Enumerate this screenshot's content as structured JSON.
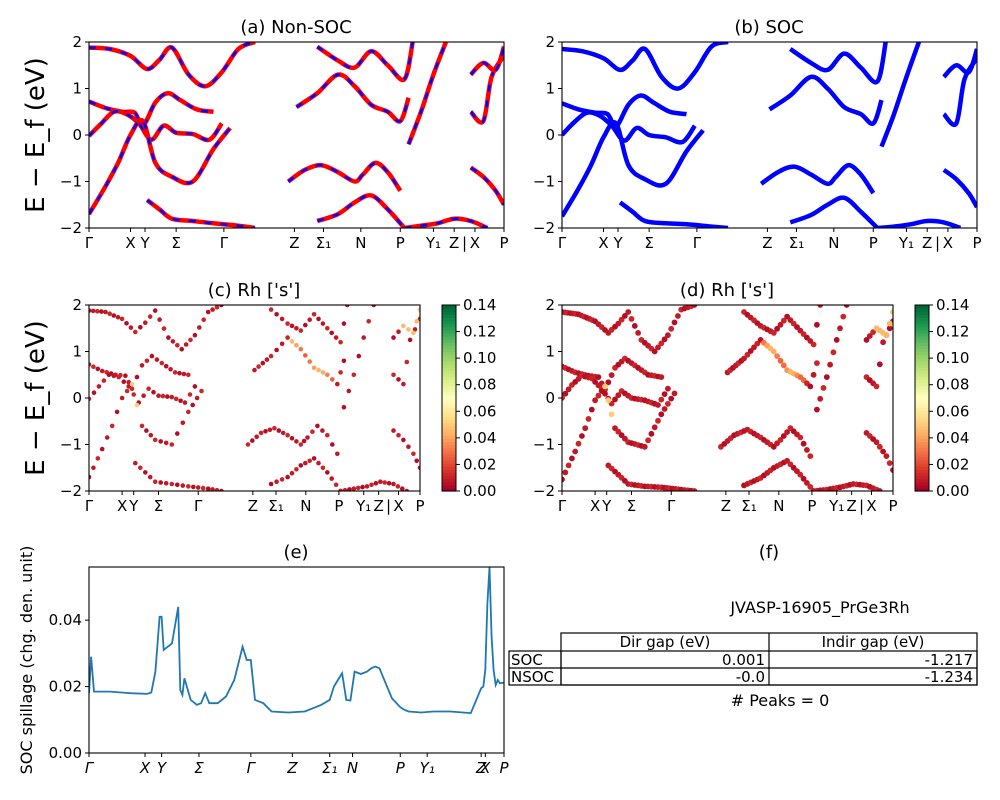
{
  "chart_data": [
    {
      "id": "a",
      "type": "line",
      "title": "(a) Non-SOC",
      "ylabel": "E − E_f (eV)",
      "ylim": [
        -2,
        2
      ],
      "yticks": [
        "−2",
        "−1",
        "0",
        "1",
        "2"
      ],
      "xticks": [
        "Γ",
        "X",
        "Y",
        "Σ",
        "Γ",
        "Z",
        "Σ₁",
        "N",
        "P",
        "Y₁",
        "Z",
        "|",
        "X",
        "P"
      ],
      "series_colors": [
        "#ff0000",
        "#0000ff"
      ],
      "bands": [
        [
          [
            0,
            1.88
          ],
          [
            0.05,
            1.85
          ],
          [
            0.1,
            1.7
          ],
          [
            0.14,
            1.42
          ],
          [
            0.17,
            1.62
          ],
          [
            0.2,
            1.88
          ],
          [
            0.24,
            1.3
          ],
          [
            0.28,
            1.05
          ],
          [
            0.32,
            1.35
          ],
          [
            0.36,
            1.85
          ],
          [
            0.4,
            2.0
          ]
        ],
        [
          [
            0,
            0.72
          ],
          [
            0.04,
            0.58
          ],
          [
            0.08,
            0.5
          ],
          [
            0.11,
            0.48
          ],
          [
            0.13,
            0.2
          ],
          [
            0.16,
            0.7
          ],
          [
            0.19,
            0.9
          ],
          [
            0.22,
            0.75
          ],
          [
            0.26,
            0.55
          ],
          [
            0.3,
            0.5
          ]
        ],
        [
          [
            0,
            -0.02
          ],
          [
            0.03,
            0.25
          ],
          [
            0.06,
            0.5
          ],
          [
            0.09,
            0.45
          ],
          [
            0.12,
            0.25
          ],
          [
            0.15,
            -0.1
          ],
          [
            0.18,
            0.2
          ],
          [
            0.21,
            0.05
          ],
          [
            0.25,
            0.02
          ],
          [
            0.29,
            -0.1
          ],
          [
            0.32,
            0.25
          ]
        ],
        [
          [
            0,
            -1.7
          ],
          [
            0.04,
            -1.1
          ],
          [
            0.07,
            -0.6
          ],
          [
            0.1,
            0.0
          ],
          [
            0.13,
            0.3
          ],
          [
            0.16,
            -0.6
          ],
          [
            0.2,
            -0.9
          ],
          [
            0.25,
            -1.0
          ],
          [
            0.3,
            -0.3
          ],
          [
            0.34,
            0.15
          ]
        ],
        [
          [
            0.14,
            -1.4
          ],
          [
            0.17,
            -1.6
          ],
          [
            0.2,
            -1.8
          ],
          [
            0.25,
            -1.85
          ],
          [
            0.3,
            -1.9
          ],
          [
            0.36,
            -1.95
          ],
          [
            0.4,
            -2.0
          ]
        ],
        [
          [
            0.48,
            -1.0
          ],
          [
            0.52,
            -0.75
          ],
          [
            0.56,
            -0.65
          ],
          [
            0.6,
            -0.8
          ],
          [
            0.64,
            -1.0
          ],
          [
            0.66,
            -0.85
          ],
          [
            0.69,
            -0.6
          ],
          [
            0.72,
            -0.8
          ],
          [
            0.75,
            -1.2
          ]
        ],
        [
          [
            0.55,
            -1.85
          ],
          [
            0.6,
            -1.7
          ],
          [
            0.64,
            -1.45
          ],
          [
            0.68,
            -1.3
          ],
          [
            0.72,
            -1.6
          ],
          [
            0.76,
            -2.0
          ]
        ],
        [
          [
            0.5,
            0.6
          ],
          [
            0.55,
            0.9
          ],
          [
            0.6,
            1.3
          ],
          [
            0.64,
            1.05
          ],
          [
            0.68,
            0.65
          ],
          [
            0.72,
            0.5
          ],
          [
            0.75,
            0.3
          ],
          [
            0.77,
            0.8
          ]
        ],
        [
          [
            0.55,
            1.9
          ],
          [
            0.6,
            1.6
          ],
          [
            0.64,
            1.45
          ],
          [
            0.68,
            1.8
          ],
          [
            0.72,
            1.5
          ],
          [
            0.76,
            1.2
          ],
          [
            0.78,
            2.0
          ]
        ],
        [
          [
            0.77,
            -0.2
          ],
          [
            0.8,
            0.5
          ],
          [
            0.83,
            1.3
          ],
          [
            0.86,
            2.0
          ]
        ],
        [
          [
            0.76,
            -2.0
          ],
          [
            0.8,
            -1.95
          ],
          [
            0.84,
            -1.9
          ],
          [
            0.88,
            -1.8
          ],
          [
            0.92,
            -1.85
          ],
          [
            0.96,
            -2.0
          ]
        ],
        [
          [
            0.92,
            0.5
          ],
          [
            0.95,
            0.3
          ],
          [
            0.97,
            1.25
          ],
          [
            1.0,
            1.7
          ]
        ],
        [
          [
            0.92,
            1.3
          ],
          [
            0.95,
            1.55
          ],
          [
            0.98,
            1.4
          ],
          [
            1.0,
            1.9
          ]
        ],
        [
          [
            0.92,
            -0.7
          ],
          [
            0.95,
            -0.9
          ],
          [
            0.98,
            -1.2
          ],
          [
            1.0,
            -1.5
          ]
        ]
      ]
    },
    {
      "id": "b",
      "type": "line",
      "title": "(b) SOC",
      "ylim": [
        -2,
        2
      ],
      "yticks": [
        "−2",
        "−1",
        "0",
        "1",
        "2"
      ],
      "xticks": [
        "Γ",
        "X",
        "Y",
        "Σ",
        "Γ",
        "Z",
        "Σ₁",
        "N",
        "P",
        "Y₁",
        "Z",
        "|",
        "X",
        "P"
      ],
      "series_colors": [
        "#0000ff"
      ],
      "bands": [
        [
          [
            0,
            1.85
          ],
          [
            0.05,
            1.8
          ],
          [
            0.1,
            1.65
          ],
          [
            0.14,
            1.4
          ],
          [
            0.17,
            1.6
          ],
          [
            0.2,
            1.85
          ],
          [
            0.24,
            1.25
          ],
          [
            0.28,
            1.0
          ],
          [
            0.32,
            1.35
          ],
          [
            0.36,
            1.9
          ],
          [
            0.4,
            2.0
          ]
        ],
        [
          [
            0,
            0.68
          ],
          [
            0.04,
            0.55
          ],
          [
            0.08,
            0.48
          ],
          [
            0.11,
            0.45
          ],
          [
            0.13,
            0.18
          ],
          [
            0.16,
            0.65
          ],
          [
            0.19,
            0.85
          ],
          [
            0.22,
            0.7
          ],
          [
            0.26,
            0.5
          ],
          [
            0.3,
            0.45
          ]
        ],
        [
          [
            0,
            0.0
          ],
          [
            0.03,
            0.28
          ],
          [
            0.06,
            0.48
          ],
          [
            0.09,
            0.42
          ],
          [
            0.12,
            0.2
          ],
          [
            0.15,
            -0.12
          ],
          [
            0.18,
            0.15
          ],
          [
            0.21,
            0.0
          ],
          [
            0.25,
            -0.05
          ],
          [
            0.29,
            -0.15
          ],
          [
            0.32,
            0.2
          ]
        ],
        [
          [
            0,
            -1.75
          ],
          [
            0.04,
            -1.15
          ],
          [
            0.07,
            -0.65
          ],
          [
            0.1,
            -0.05
          ],
          [
            0.13,
            0.25
          ],
          [
            0.16,
            -0.65
          ],
          [
            0.2,
            -0.95
          ],
          [
            0.25,
            -1.05
          ],
          [
            0.3,
            -0.35
          ],
          [
            0.34,
            0.1
          ]
        ],
        [
          [
            0.14,
            -1.45
          ],
          [
            0.17,
            -1.65
          ],
          [
            0.2,
            -1.85
          ],
          [
            0.25,
            -1.9
          ],
          [
            0.3,
            -1.92
          ],
          [
            0.36,
            -1.97
          ],
          [
            0.4,
            -2.0
          ]
        ],
        [
          [
            0.48,
            -1.05
          ],
          [
            0.52,
            -0.8
          ],
          [
            0.56,
            -0.68
          ],
          [
            0.6,
            -0.85
          ],
          [
            0.64,
            -1.05
          ],
          [
            0.66,
            -0.9
          ],
          [
            0.69,
            -0.65
          ],
          [
            0.72,
            -0.85
          ],
          [
            0.75,
            -1.25
          ]
        ],
        [
          [
            0.55,
            -1.88
          ],
          [
            0.6,
            -1.72
          ],
          [
            0.64,
            -1.5
          ],
          [
            0.68,
            -1.35
          ],
          [
            0.72,
            -1.65
          ],
          [
            0.76,
            -2.0
          ]
        ],
        [
          [
            0.5,
            0.55
          ],
          [
            0.55,
            0.85
          ],
          [
            0.6,
            1.25
          ],
          [
            0.64,
            1.0
          ],
          [
            0.68,
            0.6
          ],
          [
            0.72,
            0.45
          ],
          [
            0.75,
            0.25
          ],
          [
            0.77,
            0.75
          ]
        ],
        [
          [
            0.55,
            1.85
          ],
          [
            0.6,
            1.55
          ],
          [
            0.64,
            1.4
          ],
          [
            0.68,
            1.75
          ],
          [
            0.72,
            1.45
          ],
          [
            0.76,
            1.15
          ],
          [
            0.78,
            2.0
          ]
        ],
        [
          [
            0.77,
            -0.25
          ],
          [
            0.8,
            0.45
          ],
          [
            0.83,
            1.25
          ],
          [
            0.86,
            2.0
          ]
        ],
        [
          [
            0.76,
            -2.0
          ],
          [
            0.8,
            -1.97
          ],
          [
            0.84,
            -1.92
          ],
          [
            0.88,
            -1.85
          ],
          [
            0.92,
            -1.88
          ],
          [
            0.96,
            -2.0
          ]
        ],
        [
          [
            0.92,
            0.45
          ],
          [
            0.95,
            0.25
          ],
          [
            0.97,
            1.2
          ],
          [
            1.0,
            1.65
          ]
        ],
        [
          [
            0.92,
            1.25
          ],
          [
            0.95,
            1.5
          ],
          [
            0.98,
            1.35
          ],
          [
            1.0,
            1.85
          ]
        ],
        [
          [
            0.92,
            -0.75
          ],
          [
            0.95,
            -0.95
          ],
          [
            0.98,
            -1.25
          ],
          [
            1.0,
            -1.55
          ]
        ]
      ]
    },
    {
      "id": "c",
      "type": "scatter",
      "title": "(c)  Rh ['s']",
      "ylabel": "E − E_f (eV)",
      "ylim": [
        -2,
        2
      ],
      "yticks": [
        "−2",
        "−1",
        "0",
        "1",
        "2"
      ],
      "xticks": [
        "Γ",
        "X",
        "Y",
        "Σ",
        "Γ",
        "Z",
        "Σ₁",
        "N",
        "P",
        "Y₁",
        "Z",
        "|",
        "X",
        "P"
      ],
      "colorbar": {
        "min": 0.0,
        "max": 0.14,
        "ticks": [
          "0.00",
          "0.02",
          "0.04",
          "0.06",
          "0.08",
          "0.10",
          "0.12",
          "0.14"
        ]
      },
      "point_value_default": 0.0,
      "highlight_bands": [
        [
          0.05,
          0.12
        ],
        [
          0.9,
          0.04
        ]
      ]
    },
    {
      "id": "d",
      "type": "scatter",
      "title": "(d) Rh ['s']",
      "ylim": [
        -2,
        2
      ],
      "yticks": [
        "−2",
        "−1",
        "0",
        "1",
        "2"
      ],
      "xticks": [
        "Γ",
        "X",
        "Y",
        "Σ",
        "Γ",
        "Z",
        "Σ₁",
        "N",
        "P",
        "Y₁",
        "Z",
        "|",
        "X",
        "P"
      ],
      "colorbar": {
        "min": 0.0,
        "max": 0.14,
        "ticks": [
          "0.00",
          "0.02",
          "0.04",
          "0.06",
          "0.08",
          "0.10",
          "0.12",
          "0.14"
        ]
      }
    },
    {
      "id": "e",
      "type": "line",
      "title": "(e)",
      "ylabel": "SOC spillage (chg. den. unit)",
      "ylim": [
        0.0,
        0.056
      ],
      "yticks": [
        "0.00",
        "0.02",
        "0.04"
      ],
      "xticks": [
        "Γ",
        "X",
        "Y",
        "Σ",
        "Γ",
        "Z",
        "Σ₁",
        "N",
        "P",
        "Y₁",
        "Z",
        "X",
        "P"
      ],
      "color": "#1f77b4",
      "x": [
        0,
        0.005,
        0.012,
        0.05,
        0.1,
        0.14,
        0.15,
        0.16,
        0.17,
        0.175,
        0.18,
        0.19,
        0.2,
        0.215,
        0.22,
        0.225,
        0.23,
        0.245,
        0.26,
        0.27,
        0.28,
        0.29,
        0.31,
        0.33,
        0.35,
        0.37,
        0.38,
        0.39,
        0.4,
        0.42,
        0.44,
        0.48,
        0.52,
        0.56,
        0.58,
        0.59,
        0.6,
        0.61,
        0.62,
        0.63,
        0.64,
        0.655,
        0.67,
        0.68,
        0.69,
        0.7,
        0.71,
        0.73,
        0.75,
        0.76,
        0.77,
        0.79,
        0.8,
        0.83,
        0.87,
        0.92,
        0.94,
        0.945,
        0.95,
        0.955,
        0.96,
        0.965,
        0.97,
        0.975,
        0.98,
        0.985,
        0.99,
        1.0
      ],
      "values": [
        0.018,
        0.029,
        0.0185,
        0.0185,
        0.018,
        0.0178,
        0.0182,
        0.0245,
        0.041,
        0.041,
        0.031,
        0.032,
        0.033,
        0.044,
        0.019,
        0.0175,
        0.0225,
        0.016,
        0.0145,
        0.015,
        0.018,
        0.015,
        0.015,
        0.017,
        0.022,
        0.032,
        0.028,
        0.028,
        0.016,
        0.015,
        0.0125,
        0.0122,
        0.0125,
        0.0145,
        0.016,
        0.02,
        0.022,
        0.024,
        0.016,
        0.0158,
        0.0245,
        0.0238,
        0.0245,
        0.0255,
        0.026,
        0.0255,
        0.0225,
        0.0165,
        0.0138,
        0.013,
        0.0125,
        0.0123,
        0.0122,
        0.0125,
        0.0125,
        0.012,
        0.018,
        0.0195,
        0.02,
        0.025,
        0.045,
        0.056,
        0.035,
        0.025,
        0.0205,
        0.022,
        0.021,
        0.0212
      ]
    }
  ],
  "panel_f": {
    "title": "(f)",
    "system": "JVASP-16905_PrGe3Rh",
    "headers": [
      "",
      "Dir gap (eV)",
      "Indir gap (eV)"
    ],
    "rows": [
      {
        "label": "SOC",
        "dir": "0.001",
        "indir": "-1.217"
      },
      {
        "label": "NSOC",
        "dir": "-0.0",
        "indir": "-1.234"
      }
    ],
    "peaks": "# Peaks = 0"
  }
}
